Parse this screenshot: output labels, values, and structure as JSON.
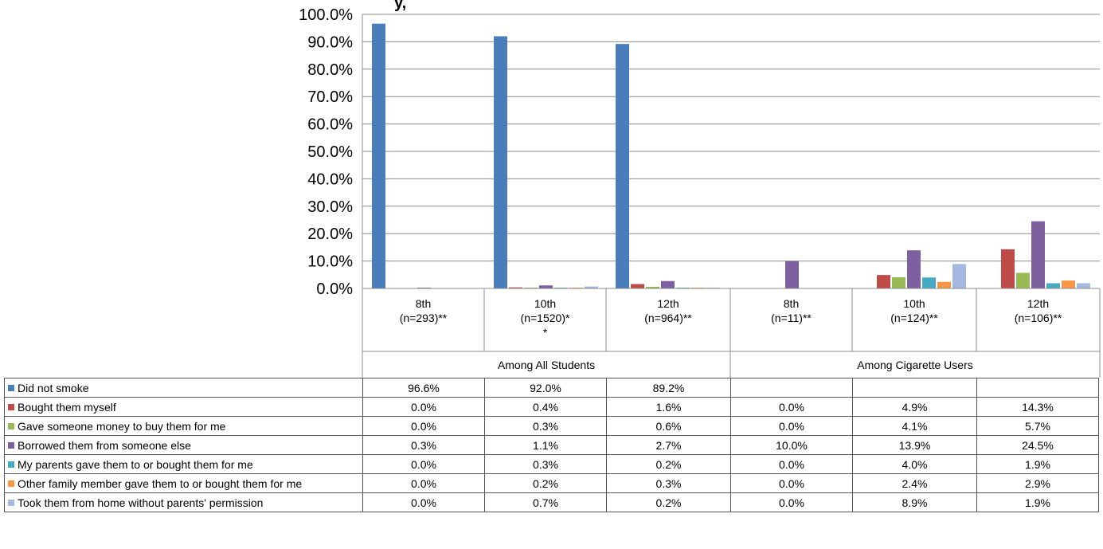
{
  "chart_data": {
    "type": "bar",
    "title_fragment": "y,",
    "ylim": [
      0,
      100
    ],
    "yticks": [
      "100.0%",
      "90.0%",
      "80.0%",
      "70.0%",
      "60.0%",
      "50.0%",
      "40.0%",
      "30.0%",
      "20.0%",
      "10.0%",
      "0.0%"
    ],
    "categories": [
      {
        "line1": "8th",
        "line2": "(n=293)**",
        "line3": ""
      },
      {
        "line1": "10th",
        "line2": "(n=1520)*",
        "line3": "*"
      },
      {
        "line1": "12th",
        "line2": "(n=964)**",
        "line3": ""
      },
      {
        "line1": "8th",
        "line2": "(n=11)**",
        "line3": ""
      },
      {
        "line1": "10th",
        "line2": "(n=124)**",
        "line3": ""
      },
      {
        "line1": "12th",
        "line2": "(n=106)**",
        "line3": ""
      }
    ],
    "groups": [
      "Among All Students",
      "Among Cigarette Users"
    ],
    "series": [
      {
        "name": "Did not smoke",
        "color": "#4a7ebb",
        "values": [
          96.6,
          92.0,
          89.2,
          null,
          null,
          null
        ],
        "labels": [
          "96.6%",
          "92.0%",
          "89.2%",
          "",
          "",
          ""
        ]
      },
      {
        "name": "Bought them myself",
        "color": "#be4b48",
        "values": [
          0.0,
          0.4,
          1.6,
          0.0,
          4.9,
          14.3
        ],
        "labels": [
          "0.0%",
          "0.4%",
          "1.6%",
          "0.0%",
          "4.9%",
          "14.3%"
        ]
      },
      {
        "name": "Gave someone money to buy them for me",
        "color": "#98b954",
        "values": [
          0.0,
          0.3,
          0.6,
          0.0,
          4.1,
          5.7
        ],
        "labels": [
          "0.0%",
          "0.3%",
          "0.6%",
          "0.0%",
          "4.1%",
          "5.7%"
        ]
      },
      {
        "name": "Borrowed them from someone else",
        "color": "#7d60a0",
        "values": [
          0.3,
          1.1,
          2.7,
          10.0,
          13.9,
          24.5
        ],
        "labels": [
          "0.3%",
          "1.1%",
          "2.7%",
          "10.0%",
          "13.9%",
          "24.5%"
        ]
      },
      {
        "name": "My parents gave them to or bought them for me",
        "color": "#46aac5",
        "values": [
          0.0,
          0.3,
          0.2,
          0.0,
          4.0,
          1.9
        ],
        "labels": [
          "0.0%",
          "0.3%",
          "0.2%",
          "0.0%",
          "4.0%",
          "1.9%"
        ]
      },
      {
        "name": "Other family member gave them to or bought them for me",
        "color": "#f79646",
        "values": [
          0.0,
          0.2,
          0.3,
          0.0,
          2.4,
          2.9
        ],
        "labels": [
          "0.0%",
          "0.2%",
          "0.3%",
          "0.0%",
          "2.4%",
          "2.9%"
        ]
      },
      {
        "name": "Took them from home without parents' permission",
        "color": "#a5b9e0",
        "values": [
          0.0,
          0.7,
          0.2,
          0.0,
          8.9,
          1.9
        ],
        "labels": [
          "0.0%",
          "0.7%",
          "0.2%",
          "0.0%",
          "8.9%",
          "1.9%"
        ]
      }
    ]
  }
}
